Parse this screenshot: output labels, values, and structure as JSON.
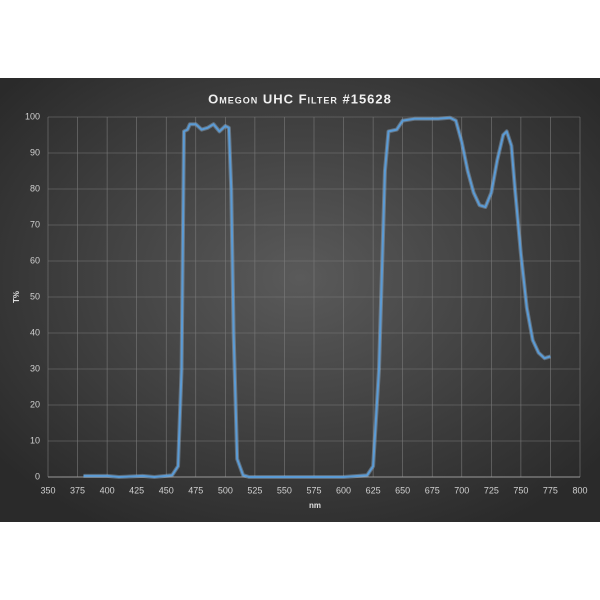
{
  "chart_data": {
    "type": "line",
    "title": "Omegon UHC Filter #15628",
    "x_label": "nm",
    "y_label": "T%",
    "xlim": [
      350,
      800
    ],
    "xticks": [
      350,
      375,
      400,
      425,
      450,
      475,
      500,
      525,
      550,
      575,
      600,
      625,
      650,
      675,
      700,
      725,
      750,
      775,
      800
    ],
    "ylim": [
      0,
      100
    ],
    "yticks": [
      0,
      10,
      20,
      30,
      40,
      50,
      60,
      70,
      80,
      90,
      100
    ],
    "grid": true,
    "series": [
      {
        "name": "T%",
        "color": "#5b9bd5",
        "x": [
          380,
          400,
          410,
          430,
          440,
          455,
          460,
          463,
          465,
          468,
          470,
          475,
          480,
          485,
          490,
          495,
          500,
          503,
          505,
          507,
          510,
          515,
          520,
          600,
          620,
          625,
          630,
          635,
          638,
          645,
          650,
          660,
          680,
          690,
          695,
          700,
          705,
          710,
          715,
          720,
          725,
          730,
          735,
          738,
          742,
          745,
          750,
          755,
          760,
          765,
          770,
          775
        ],
        "values": [
          0.3,
          0.3,
          0,
          0.3,
          0,
          0.5,
          3,
          30,
          96,
          96.5,
          98,
          98,
          96.5,
          97,
          98,
          96,
          97.5,
          97,
          80,
          40,
          5,
          0.5,
          0,
          0,
          0.5,
          3,
          30,
          85,
          96,
          96.5,
          99,
          99.5,
          99.5,
          99.8,
          99,
          93,
          85,
          79,
          75.5,
          75,
          79,
          88,
          95,
          96,
          92,
          80,
          62,
          47,
          38,
          34.5,
          33,
          33.5
        ]
      }
    ]
  }
}
